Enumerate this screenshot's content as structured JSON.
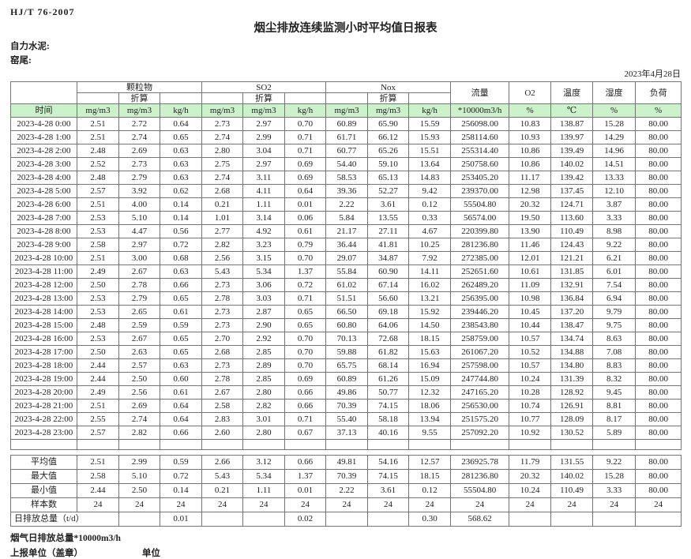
{
  "meta": {
    "standard": "HJ/T  76-2007",
    "title": "烟尘排放连续监测小时平均值日报表",
    "company": "自力水泥:",
    "location": "窑尾:",
    "date": "2023年4月28日"
  },
  "table": {
    "columns": {
      "time": "时间",
      "converted": "折算",
      "groups": [
        {
          "label": "颗粒物"
        },
        {
          "label": "SO2"
        },
        {
          "label": "Nox"
        }
      ],
      "sub_units": [
        "mg/m3",
        "mg/m3",
        "kg/h"
      ],
      "singles": [
        {
          "label": "流量",
          "unit": "*10000m3/h"
        },
        {
          "label": "O2",
          "unit": "%"
        },
        {
          "label": "温度",
          "unit": "℃"
        },
        {
          "label": "湿度",
          "unit": "%"
        },
        {
          "label": "负荷",
          "unit": "%"
        }
      ]
    },
    "rows": [
      {
        "time": "2023-4-28 0:00",
        "values": [
          "2.51",
          "2.72",
          "0.64",
          "2.73",
          "2.97",
          "0.70",
          "60.89",
          "65.90",
          "15.59",
          "256098.00",
          "10.83",
          "138.87",
          "15.28",
          "80.00"
        ]
      },
      {
        "time": "2023-4-28 1:00",
        "values": [
          "2.51",
          "2.74",
          "0.65",
          "2.74",
          "2.99",
          "0.71",
          "61.71",
          "66.12",
          "15.93",
          "258114.60",
          "10.93",
          "139.97",
          "14.29",
          "80.00"
        ]
      },
      {
        "time": "2023-4-28 2:00",
        "values": [
          "2.48",
          "2.69",
          "0.63",
          "2.80",
          "3.04",
          "0.71",
          "60.77",
          "65.26",
          "15.51",
          "255314.40",
          "10.86",
          "139.49",
          "14.96",
          "80.00"
        ]
      },
      {
        "time": "2023-4-28 3:00",
        "values": [
          "2.52",
          "2.73",
          "0.63",
          "2.75",
          "2.97",
          "0.69",
          "54.40",
          "59.10",
          "13.64",
          "250758.60",
          "10.86",
          "140.02",
          "14.51",
          "80.00"
        ]
      },
      {
        "time": "2023-4-28 4:00",
        "values": [
          "2.48",
          "2.79",
          "0.63",
          "2.74",
          "3.11",
          "0.69",
          "58.53",
          "65.13",
          "14.83",
          "253405.20",
          "11.17",
          "139.42",
          "13.33",
          "80.00"
        ]
      },
      {
        "time": "2023-4-28 5:00",
        "values": [
          "2.57",
          "3.92",
          "0.62",
          "2.68",
          "4.11",
          "0.64",
          "39.36",
          "52.27",
          "9.42",
          "239370.00",
          "12.98",
          "137.45",
          "12.10",
          "80.00"
        ]
      },
      {
        "time": "2023-4-28 6:00",
        "values": [
          "2.51",
          "4.00",
          "0.14",
          "0.21",
          "1.11",
          "0.01",
          "2.22",
          "3.61",
          "0.12",
          "55504.80",
          "20.32",
          "124.71",
          "3.87",
          "80.00"
        ]
      },
      {
        "time": "2023-4-28 7:00",
        "values": [
          "2.53",
          "5.10",
          "0.14",
          "1.01",
          "3.14",
          "0.06",
          "5.84",
          "13.55",
          "0.33",
          "56574.00",
          "19.50",
          "113.60",
          "3.33",
          "80.00"
        ]
      },
      {
        "time": "2023-4-28 8:00",
        "values": [
          "2.53",
          "4.47",
          "0.56",
          "2.77",
          "4.92",
          "0.61",
          "21.17",
          "27.11",
          "4.67",
          "220399.80",
          "13.90",
          "110.49",
          "8.98",
          "80.00"
        ]
      },
      {
        "time": "2023-4-28 9:00",
        "values": [
          "2.58",
          "2.97",
          "0.72",
          "2.82",
          "3.23",
          "0.79",
          "36.44",
          "41.81",
          "10.25",
          "281236.80",
          "11.46",
          "124.43",
          "9.22",
          "80.00"
        ]
      },
      {
        "time": "2023-4-28 10:00",
        "values": [
          "2.51",
          "3.00",
          "0.68",
          "2.56",
          "3.15",
          "0.70",
          "29.07",
          "34.87",
          "7.92",
          "272385.00",
          "12.01",
          "121.21",
          "6.21",
          "80.00"
        ]
      },
      {
        "time": "2023-4-28 11:00",
        "values": [
          "2.49",
          "2.67",
          "0.63",
          "5.43",
          "5.34",
          "1.37",
          "55.84",
          "60.90",
          "14.11",
          "252651.60",
          "10.61",
          "131.85",
          "6.01",
          "80.00"
        ]
      },
      {
        "time": "2023-4-28 12:00",
        "values": [
          "2.50",
          "2.78",
          "0.66",
          "2.73",
          "3.06",
          "0.72",
          "61.02",
          "67.14",
          "16.02",
          "262489.20",
          "11.09",
          "132.91",
          "7.54",
          "80.00"
        ]
      },
      {
        "time": "2023-4-28 13:00",
        "values": [
          "2.53",
          "2.79",
          "0.65",
          "2.78",
          "3.03",
          "0.71",
          "51.51",
          "56.60",
          "13.21",
          "256395.00",
          "10.98",
          "136.84",
          "6.94",
          "80.00"
        ]
      },
      {
        "time": "2023-4-28 14:00",
        "values": [
          "2.53",
          "2.65",
          "0.61",
          "2.73",
          "2.87",
          "0.65",
          "66.50",
          "69.18",
          "15.92",
          "239446.20",
          "10.45",
          "137.20",
          "9.79",
          "80.00"
        ]
      },
      {
        "time": "2023-4-28 15:00",
        "values": [
          "2.48",
          "2.59",
          "0.59",
          "2.73",
          "2.90",
          "0.65",
          "60.80",
          "64.06",
          "14.50",
          "238543.80",
          "10.44",
          "138.47",
          "9.75",
          "80.00"
        ]
      },
      {
        "time": "2023-4-28 16:00",
        "values": [
          "2.53",
          "2.67",
          "0.65",
          "2.70",
          "2.92",
          "0.70",
          "70.13",
          "72.68",
          "18.15",
          "258759.00",
          "10.57",
          "134.74",
          "8.63",
          "80.00"
        ]
      },
      {
        "time": "2023-4-28 17:00",
        "values": [
          "2.50",
          "2.63",
          "0.65",
          "2.68",
          "2.85",
          "0.70",
          "59.88",
          "61.82",
          "15.63",
          "261067.20",
          "10.52",
          "134.88",
          "7.08",
          "80.00"
        ]
      },
      {
        "time": "2023-4-28 18:00",
        "values": [
          "2.44",
          "2.57",
          "0.63",
          "2.73",
          "2.89",
          "0.70",
          "65.75",
          "68.14",
          "16.94",
          "257598.00",
          "10.57",
          "134.80",
          "8.83",
          "80.00"
        ]
      },
      {
        "time": "2023-4-28 19:00",
        "values": [
          "2.44",
          "2.50",
          "0.60",
          "2.78",
          "2.85",
          "0.69",
          "60.89",
          "61.26",
          "15.09",
          "247744.80",
          "10.24",
          "131.39",
          "8.32",
          "80.00"
        ]
      },
      {
        "time": "2023-4-28 20:00",
        "values": [
          "2.49",
          "2.56",
          "0.61",
          "2.67",
          "2.80",
          "0.66",
          "49.86",
          "50.77",
          "12.32",
          "247165.20",
          "10.28",
          "128.92",
          "9.45",
          "80.00"
        ]
      },
      {
        "time": "2023-4-28 21:00",
        "values": [
          "2.51",
          "2.69",
          "0.64",
          "2.58",
          "2.82",
          "0.66",
          "70.39",
          "74.15",
          "18.06",
          "256530.00",
          "10.74",
          "126.91",
          "8.81",
          "80.00"
        ]
      },
      {
        "time": "2023-4-28 22:00",
        "values": [
          "2.55",
          "2.74",
          "0.64",
          "2.83",
          "3.01",
          "0.71",
          "55.40",
          "58.18",
          "13.94",
          "251575.20",
          "10.77",
          "128.09",
          "8.17",
          "80.00"
        ]
      },
      {
        "time": "2023-4-28 23:00",
        "values": [
          "2.57",
          "2.82",
          "0.66",
          "2.60",
          "2.80",
          "0.67",
          "37.13",
          "40.16",
          "9.55",
          "257092.20",
          "10.92",
          "130.52",
          "5.89",
          "80.00"
        ]
      }
    ],
    "summary": [
      {
        "label": "平均值",
        "values": [
          "2.51",
          "2.99",
          "0.59",
          "2.66",
          "3.12",
          "0.66",
          "49.81",
          "54.16",
          "12.57",
          "236925.78",
          "11.79",
          "131.55",
          "9.22",
          "80.00"
        ]
      },
      {
        "label": "最大值",
        "values": [
          "2.58",
          "5.10",
          "0.72",
          "5.43",
          "5.34",
          "1.37",
          "70.39",
          "74.15",
          "18.15",
          "281236.80",
          "20.32",
          "140.02",
          "15.28",
          "80.00"
        ]
      },
      {
        "label": "最小值",
        "values": [
          "2.44",
          "2.50",
          "0.14",
          "0.21",
          "1.11",
          "0.01",
          "2.22",
          "3.61",
          "0.12",
          "55504.80",
          "10.24",
          "110.49",
          "3.33",
          "80.00"
        ]
      },
      {
        "label": "样本数",
        "values": [
          "24",
          "24",
          "24",
          "24",
          "24",
          "24",
          "24",
          "24",
          "24",
          "24",
          "24",
          "24",
          "24",
          "24"
        ]
      }
    ],
    "daily_total": {
      "label": "日排放总量（t/d）",
      "values": [
        "",
        "0.01",
        "",
        "",
        "0.02",
        "",
        "",
        "0.30",
        "568.62",
        "",
        "",
        "",
        ""
      ]
    }
  },
  "footer": {
    "line1": "烟气日排放总量*10000m3/h",
    "line2": "上报单位（盖章）",
    "line3": "单位"
  },
  "colors": {
    "header_green": "#ccf2cc"
  }
}
